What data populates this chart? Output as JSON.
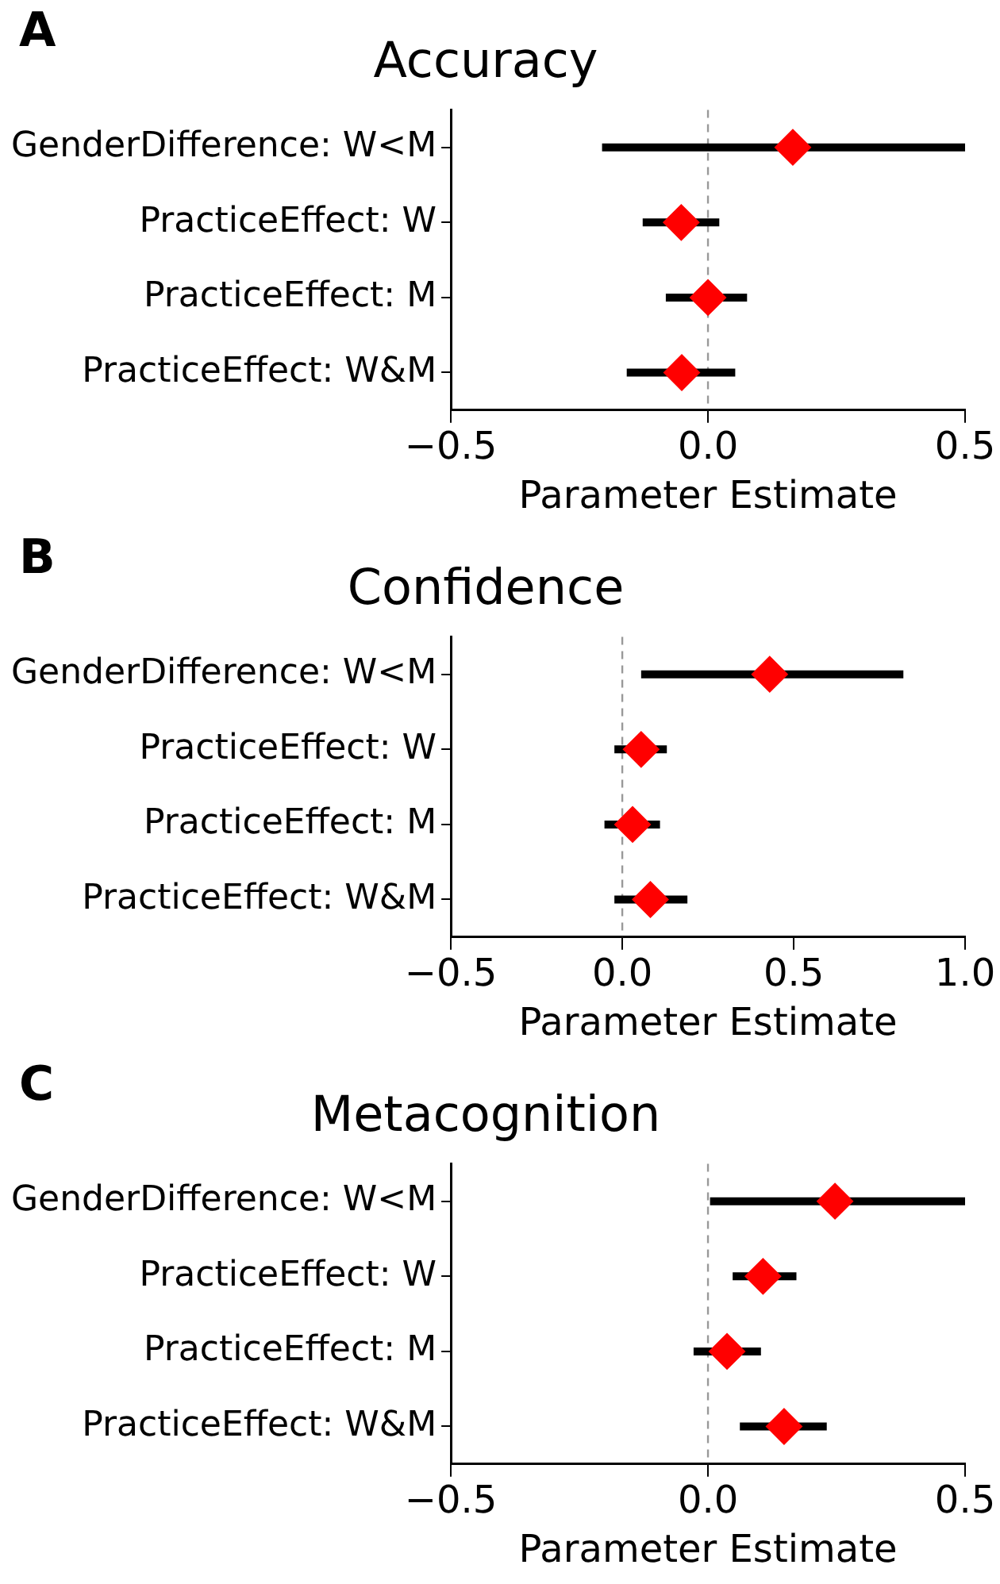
{
  "chart_data": [
    {
      "type": "scatter",
      "orientation": "horizontal",
      "title": "Accuracy",
      "xlabel": "Parameter Estimate",
      "annotations": [
        "A"
      ],
      "categories": [
        "GenderDifference: W<M",
        "PracticeEffect: W",
        "PracticeEffect: M",
        "PracticeEffect: W&M"
      ],
      "series": [
        {
          "color": "#ff0000",
          "values": [
            0.165,
            -0.052,
            0.0,
            -0.051
          ],
          "errors": [
            [
              -0.206,
              0.5
            ],
            [
              -0.127,
              0.022
            ],
            [
              -0.082,
              0.076
            ],
            [
              -0.158,
              0.053
            ]
          ]
        }
      ],
      "xlim": [
        -0.5,
        0.5
      ],
      "xticks": [
        {
          "value": -0.5,
          "label": "−0.5"
        },
        {
          "value": 0,
          "label": "0.0"
        },
        {
          "value": 0.5,
          "label": "0.5"
        }
      ],
      "ref_lines": [
        {
          "axis": "x",
          "value": 0,
          "color": "#999999",
          "line_style": "dashed"
        }
      ],
      "marker": "diamond",
      "grid": false,
      "legend": false
    },
    {
      "type": "scatter",
      "orientation": "horizontal",
      "title": "Confidence",
      "xlabel": "Parameter Estimate",
      "annotations": [
        "B"
      ],
      "categories": [
        "GenderDifference: W<M",
        "PracticeEffect: W",
        "PracticeEffect: M",
        "PracticeEffect: W&M"
      ],
      "series": [
        {
          "color": "#ff0000",
          "values": [
            0.43,
            0.055,
            0.03,
            0.082
          ],
          "errors": [
            [
              0.055,
              0.82
            ],
            [
              -0.023,
              0.13
            ],
            [
              -0.052,
              0.11
            ],
            [
              -0.023,
              0.19
            ]
          ]
        }
      ],
      "xlim": [
        -0.5,
        1.0
      ],
      "xticks": [
        {
          "value": -0.5,
          "label": "−0.5"
        },
        {
          "value": 0,
          "label": "0.0"
        },
        {
          "value": 0.5,
          "label": "0.5"
        },
        {
          "value": 1.0,
          "label": "1.0"
        }
      ],
      "ref_lines": [
        {
          "axis": "x",
          "value": 0,
          "color": "#999999",
          "line_style": "dashed"
        }
      ],
      "marker": "diamond",
      "grid": false,
      "legend": false
    },
    {
      "type": "scatter",
      "orientation": "horizontal",
      "title": "Metacognition",
      "xlabel": "Parameter Estimate",
      "annotations": [
        "C"
      ],
      "categories": [
        "GenderDifference: W<M",
        "PracticeEffect: W",
        "PracticeEffect: M",
        "PracticeEffect: W&M"
      ],
      "series": [
        {
          "color": "#ff0000",
          "values": [
            0.247,
            0.107,
            0.037,
            0.148
          ],
          "errors": [
            [
              0.004,
              0.5
            ],
            [
              0.048,
              0.172
            ],
            [
              -0.028,
              0.103
            ],
            [
              0.062,
              0.231
            ]
          ]
        }
      ],
      "xlim": [
        -0.5,
        0.5
      ],
      "xticks": [
        {
          "value": -0.5,
          "label": "−0.5"
        },
        {
          "value": 0,
          "label": "0.0"
        },
        {
          "value": 0.5,
          "label": "0.5"
        }
      ],
      "ref_lines": [
        {
          "axis": "x",
          "value": 0,
          "color": "#999999",
          "line_style": "dashed"
        }
      ],
      "marker": "diamond",
      "grid": false,
      "legend": false
    }
  ]
}
